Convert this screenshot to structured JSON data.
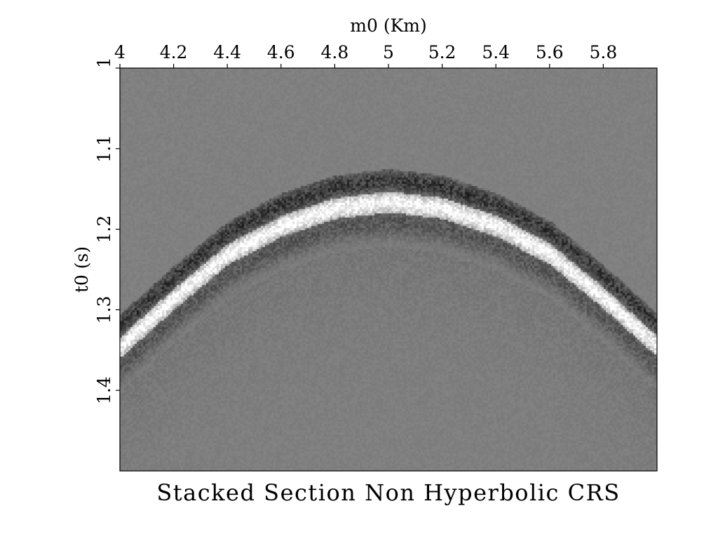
{
  "chart_data": {
    "type": "heatmap",
    "title": "Stacked Section Non Hyperbolic CRS",
    "xlabel": "m0 (Km)",
    "ylabel": "t0 (s)",
    "xlim": [
      4.0,
      6.0
    ],
    "ylim": [
      1.0,
      1.5
    ],
    "x_axis_position": "top",
    "y_axis_reversed": true,
    "x_ticks": [
      {
        "value": 4.0,
        "label": "4"
      },
      {
        "value": 4.2,
        "label": "4.2"
      },
      {
        "value": 4.4,
        "label": "4.4"
      },
      {
        "value": 4.6,
        "label": "4.6"
      },
      {
        "value": 4.8,
        "label": "4.8"
      },
      {
        "value": 5.0,
        "label": "5"
      },
      {
        "value": 5.2,
        "label": "5.2"
      },
      {
        "value": 5.4,
        "label": "5.4"
      },
      {
        "value": 5.6,
        "label": "5.6"
      },
      {
        "value": 5.8,
        "label": "5.8"
      }
    ],
    "y_ticks": [
      {
        "value": 1.0,
        "label": "1"
      },
      {
        "value": 1.1,
        "label": "1.1"
      },
      {
        "value": 1.2,
        "label": "1.2"
      },
      {
        "value": 1.3,
        "label": "1.3"
      },
      {
        "value": 1.4,
        "label": "1.4"
      }
    ],
    "colormap": "grayscale",
    "event": {
      "shape": "diffraction curve",
      "apex_m0": 5.0,
      "apex_t0": 1.16,
      "samples": [
        {
          "m0": 4.0,
          "t0": 1.34
        },
        {
          "m0": 4.2,
          "t0": 1.28
        },
        {
          "m0": 4.4,
          "t0": 1.225
        },
        {
          "m0": 4.6,
          "t0": 1.19
        },
        {
          "m0": 4.8,
          "t0": 1.168
        },
        {
          "m0": 5.0,
          "t0": 1.16
        },
        {
          "m0": 5.2,
          "t0": 1.168
        },
        {
          "m0": 5.4,
          "t0": 1.19
        },
        {
          "m0": 5.6,
          "t0": 1.225
        },
        {
          "m0": 5.8,
          "t0": 1.28
        },
        {
          "m0": 6.0,
          "t0": 1.34
        }
      ]
    }
  }
}
